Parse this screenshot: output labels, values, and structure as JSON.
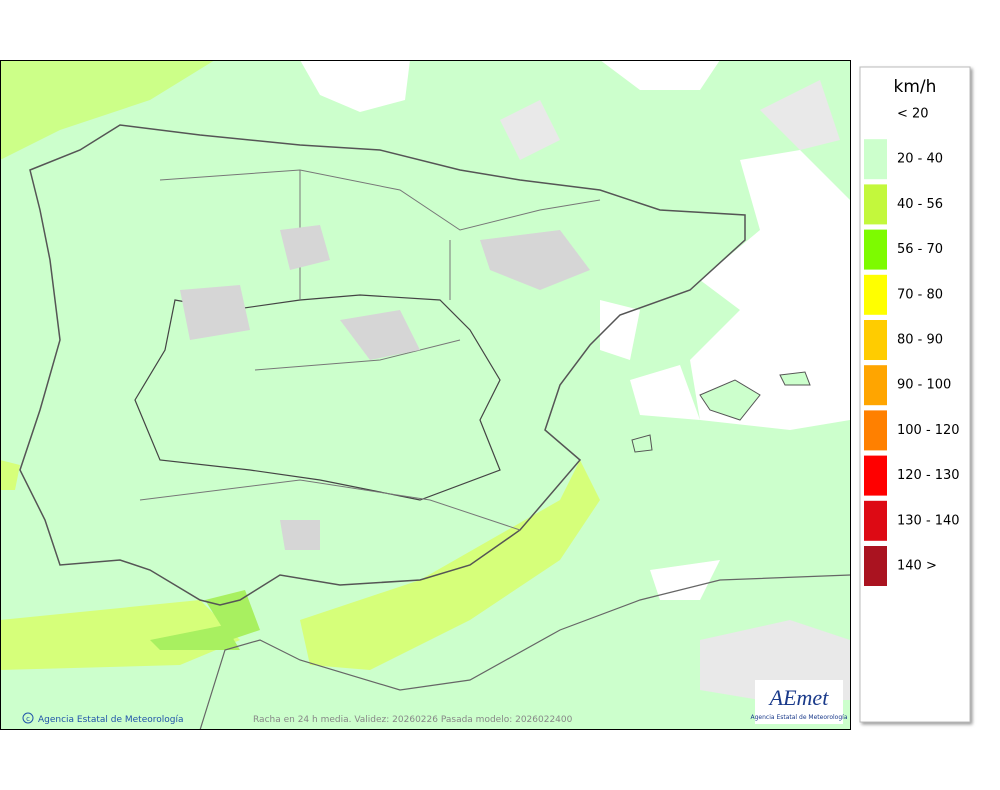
{
  "legend": {
    "title": "km/h",
    "items": [
      {
        "label": "< 20",
        "color": "#ffffff"
      },
      {
        "label": "20 - 40",
        "color": "#ccffcc"
      },
      {
        "label": "40 - 56",
        "color": "#c3f83c"
      },
      {
        "label": "56 - 70",
        "color": "#7dfb00"
      },
      {
        "label": "70 - 80",
        "color": "#ffff00"
      },
      {
        "label": "80 - 90",
        "color": "#ffcc00"
      },
      {
        "label": "90 - 100",
        "color": "#ffa500"
      },
      {
        "label": "100 - 120",
        "color": "#ff8000"
      },
      {
        "label": "120 - 130",
        "color": "#ff0000"
      },
      {
        "label": "130 - 140",
        "color": "#dd0a14"
      },
      {
        "label": "140 >",
        "color": "#aa1320"
      }
    ]
  },
  "footer": {
    "credit": "Agencia Estatal de Meteorología",
    "caption": "Racha en 24 h media. Validez: 20260226 Pasada modelo: 2026022400"
  },
  "logo": {
    "name": "AEmet",
    "subtitle": "Agencia Estatal de Meteorología"
  }
}
